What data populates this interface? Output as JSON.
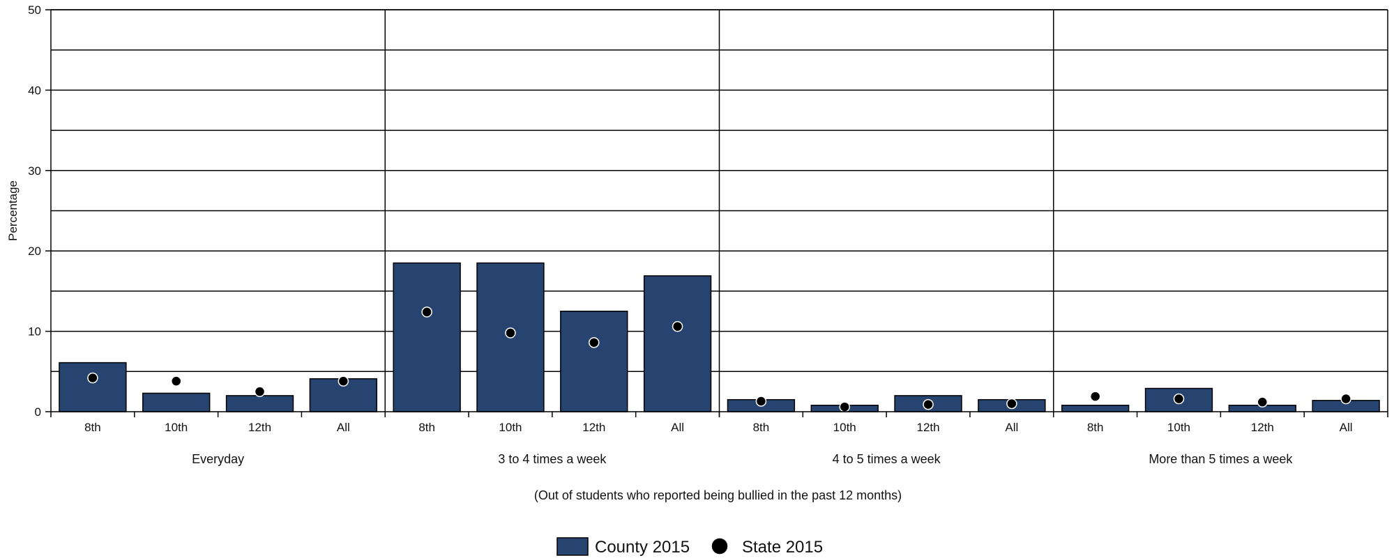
{
  "chart_data": {
    "type": "bar",
    "ylabel": "Percentage",
    "ylim": [
      0,
      50
    ],
    "y_ticks": [
      "0",
      "10",
      "20",
      "30",
      "40",
      "50"
    ],
    "grid": true,
    "groups": [
      {
        "name": "Everyday",
        "categories": [
          "8th",
          "10th",
          "12th",
          "All"
        ]
      },
      {
        "name": "3 to 4 times a week",
        "categories": [
          "8th",
          "10th",
          "12th",
          "All"
        ]
      },
      {
        "name": "4 to 5 times a week",
        "categories": [
          "8th",
          "10th",
          "12th",
          "All"
        ]
      },
      {
        "name": "More than 5 times a week",
        "categories": [
          "8th",
          "10th",
          "12th",
          "All"
        ]
      }
    ],
    "series": [
      {
        "name": "County 2015",
        "kind": "bar",
        "color": "#26446f",
        "values": [
          6.1,
          2.3,
          2.0,
          4.1,
          18.5,
          18.5,
          12.5,
          16.9,
          1.5,
          0.8,
          2.0,
          1.5,
          0.8,
          2.9,
          0.8,
          1.4
        ]
      },
      {
        "name": "State 2015",
        "kind": "dot",
        "color": "#000000",
        "values": [
          4.2,
          3.8,
          2.5,
          3.8,
          12.4,
          9.8,
          8.6,
          10.6,
          1.3,
          0.6,
          0.9,
          1.0,
          1.9,
          1.6,
          1.2,
          1.6
        ]
      }
    ],
    "note": "(Out of students who reported being bullied in the past 12 months)",
    "legend_position": "bottom-center"
  }
}
